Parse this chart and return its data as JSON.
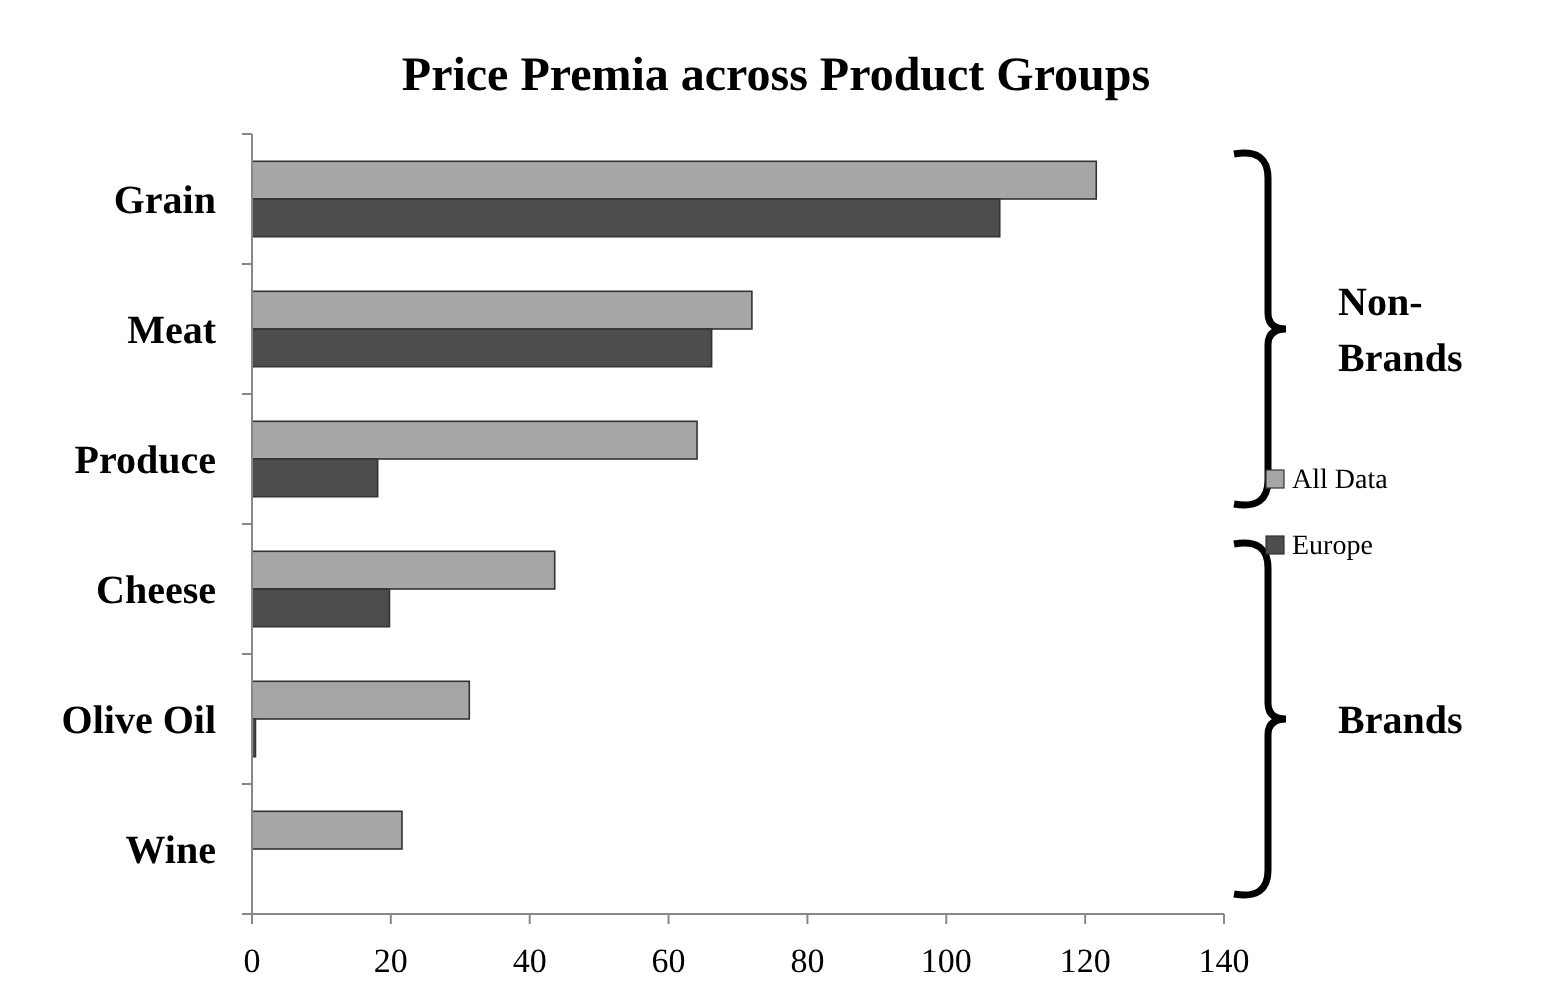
{
  "chart_data": {
    "type": "bar",
    "orientation": "horizontal",
    "title": "Price Premia across Product Groups",
    "categories": [
      "Grain",
      "Meat",
      "Produce",
      "Cheese",
      "Olive Oil",
      "Wine"
    ],
    "series": [
      {
        "name": "All Data",
        "color": "#a6a6a6",
        "values": [
          121.6,
          72,
          64.1,
          43.6,
          31.3,
          21.6
        ]
      },
      {
        "name": "Europe",
        "color": "#4d4d4d",
        "values": [
          107.7,
          66.2,
          18.1,
          19.8,
          0.5,
          null
        ]
      }
    ],
    "xlim": [
      0,
      140
    ],
    "xticks": [
      0,
      20,
      40,
      60,
      80,
      100,
      120,
      140
    ],
    "grid": false,
    "legend": "right",
    "annotations": [
      "Non-Brands",
      "Brands"
    ]
  }
}
